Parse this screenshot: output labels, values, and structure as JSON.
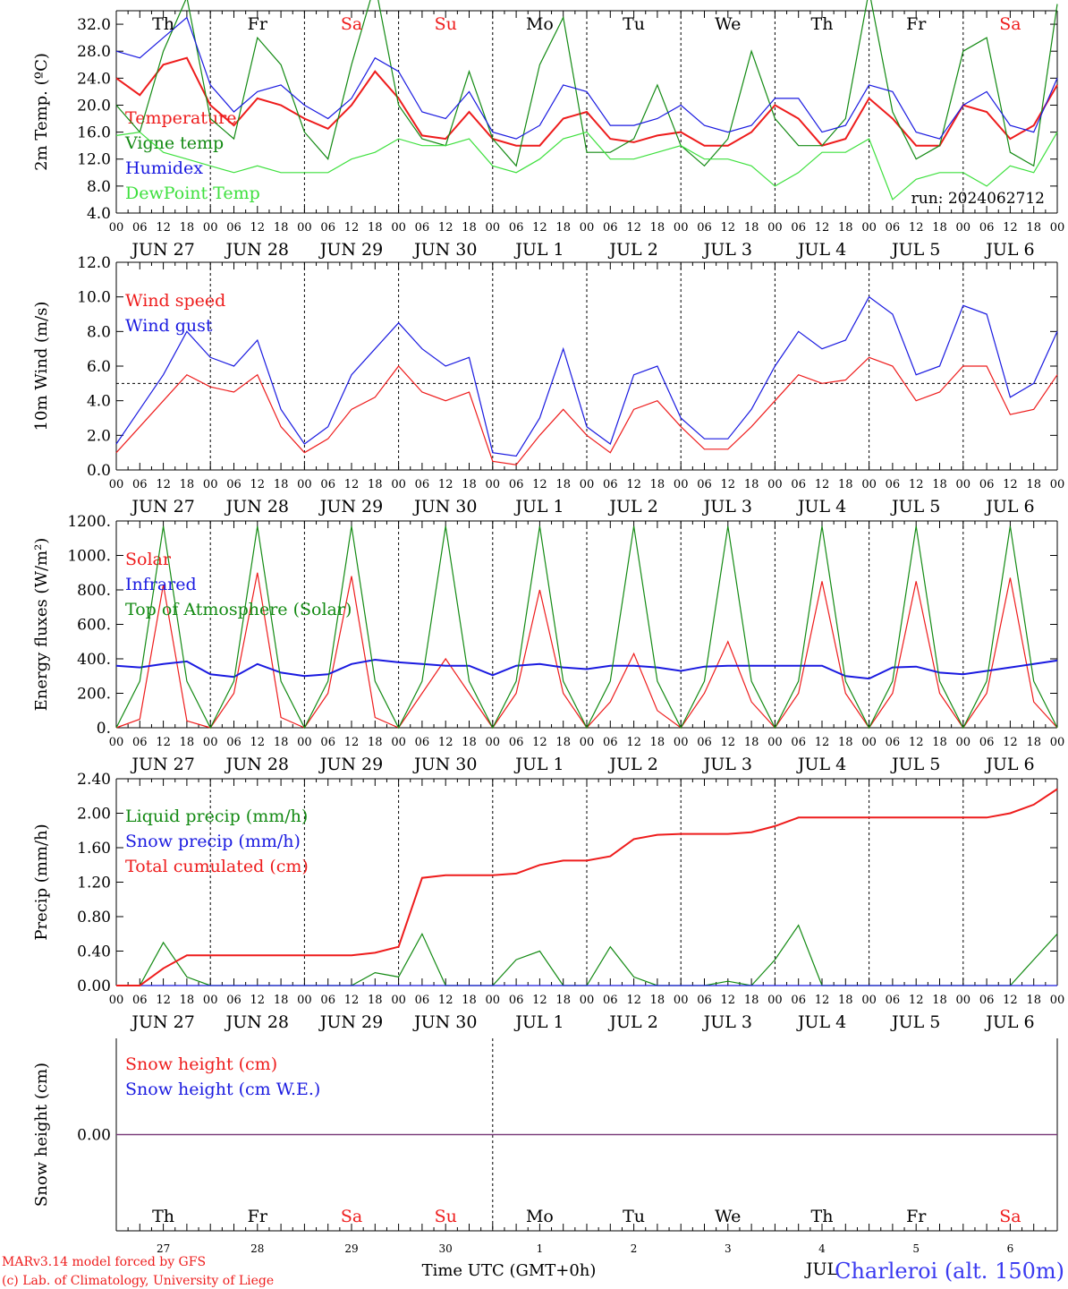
{
  "colors": {
    "red": "#ee1c1c",
    "green": "#138a13",
    "blue": "#1a1ae0",
    "lightgreen": "#3ee03e",
    "purple": "#7a3a7a",
    "black": "#000000",
    "footer_blue": "#3a3af0"
  },
  "days": [
    "Th",
    "Fr",
    "Sa",
    "Su",
    "Mo",
    "Tu",
    "We",
    "Th",
    "Fr",
    "Sa"
  ],
  "weekend_days": [
    2,
    3,
    9
  ],
  "date_labels": [
    "JUN 27",
    "JUN 28",
    "JUN 29",
    "JUN 30",
    "JUL  1",
    "JUL  2",
    "JUL  3",
    "JUL  4",
    "JUL  5",
    "JUL  6"
  ],
  "hour_labels": [
    "00",
    "06",
    "12",
    "18"
  ],
  "final_hour": "00",
  "bottom_day_numbers": [
    "27",
    "28",
    "29",
    "30",
    "1",
    "2",
    "3",
    "4",
    "5",
    "6"
  ],
  "bottom_month": "JUL",
  "xlabel": "Time UTC (GMT+0h)",
  "footer": {
    "model": "MARv3.14 model forced by GFS",
    "credit": "(c) Lab. of Climatology, University of Liege",
    "station": "Charleroi (alt. 150m)"
  },
  "run_label": "run: 2024062712",
  "chart_data": [
    {
      "type": "line",
      "id": "temp",
      "ylabel": "2m Temp. (ºC)",
      "ylim": [
        4,
        34
      ],
      "yticks": [
        "4.0",
        "8.0",
        "12.0",
        "16.0",
        "20.0",
        "24.0",
        "28.0",
        "32.0"
      ],
      "ytick_values": [
        4,
        8,
        12,
        16,
        20,
        24,
        28,
        32
      ],
      "x_unit": "hours since Jun 27 00 UTC",
      "x": [
        0,
        6,
        12,
        18,
        24,
        30,
        36,
        42,
        48,
        54,
        60,
        66,
        72,
        78,
        84,
        90,
        96,
        102,
        108,
        114,
        120,
        126,
        132,
        138,
        144,
        150,
        156,
        162,
        168,
        174,
        180,
        186,
        192,
        198,
        204,
        210,
        216,
        222,
        228,
        234,
        240
      ],
      "series": [
        {
          "name": "Temperature",
          "color": "red",
          "values": [
            24,
            21.5,
            26,
            27,
            20,
            17,
            21,
            20,
            18,
            16.5,
            20,
            25,
            21,
            15.5,
            15,
            19,
            15,
            14,
            14,
            18,
            19,
            15,
            14.5,
            15.5,
            16,
            14,
            14,
            16,
            20,
            18,
            14,
            15,
            21,
            18,
            14,
            14,
            20,
            19,
            15,
            17,
            23
          ]
        },
        {
          "name": "Vigne temp",
          "color": "green",
          "values": [
            20,
            16,
            28,
            36,
            18,
            15,
            30,
            26,
            16,
            12,
            26,
            38,
            20,
            15,
            14,
            25,
            15,
            11,
            26,
            33,
            13,
            13,
            15,
            23,
            14,
            11,
            15,
            28,
            18,
            14,
            14,
            18,
            37,
            19,
            12,
            14,
            28,
            30,
            13,
            11,
            35
          ]
        },
        {
          "name": "Humidex",
          "color": "blue",
          "values": [
            28,
            27,
            30,
            33,
            23,
            19,
            22,
            23,
            20,
            18,
            21,
            27,
            25,
            19,
            18,
            22,
            16,
            15,
            17,
            23,
            22,
            17,
            17,
            18,
            20,
            17,
            16,
            17,
            21,
            21,
            16,
            17,
            23,
            22,
            16,
            15,
            20,
            22,
            17,
            16,
            24
          ]
        },
        {
          "name": "DewPoint Temp",
          "color": "lightgreen",
          "values": [
            15.5,
            16,
            13,
            12,
            11,
            10,
            11,
            10,
            10,
            10,
            12,
            13,
            15,
            14,
            14,
            15,
            11,
            10,
            12,
            15,
            16,
            12,
            12,
            13,
            14,
            12,
            12,
            11,
            8,
            10,
            13,
            13,
            15,
            6,
            9,
            10,
            10,
            8,
            11,
            10,
            16
          ]
        }
      ]
    },
    {
      "type": "line",
      "id": "wind",
      "ylabel": "10m Wind (m/s)",
      "ylim": [
        0,
        12
      ],
      "ref_line": 5,
      "yticks": [
        "0.0",
        "2.0",
        "4.0",
        "6.0",
        "8.0",
        "10.0",
        "12.0"
      ],
      "ytick_values": [
        0,
        2,
        4,
        6,
        8,
        10,
        12
      ],
      "x_unit": "hours since Jun 27 00 UTC",
      "x": [
        0,
        6,
        12,
        18,
        24,
        30,
        36,
        42,
        48,
        54,
        60,
        66,
        72,
        78,
        84,
        90,
        96,
        102,
        108,
        114,
        120,
        126,
        132,
        138,
        144,
        150,
        156,
        162,
        168,
        174,
        180,
        186,
        192,
        198,
        204,
        210,
        216,
        222,
        228,
        234,
        240
      ],
      "series": [
        {
          "name": "Wind speed",
          "color": "red",
          "values": [
            1,
            2.5,
            4,
            5.5,
            4.8,
            4.5,
            5.5,
            2.5,
            1,
            1.8,
            3.5,
            4.2,
            6,
            4.5,
            4,
            4.5,
            0.5,
            0.3,
            2,
            3.5,
            2,
            1,
            3.5,
            4,
            2.5,
            1.2,
            1.2,
            2.5,
            4,
            5.5,
            5,
            5.2,
            6.5,
            6,
            4,
            4.5,
            6,
            6,
            3.2,
            3.5,
            5.5
          ]
        },
        {
          "name": "Wind gust",
          "color": "blue",
          "values": [
            1.5,
            3.5,
            5.5,
            8,
            6.5,
            6,
            7.5,
            3.5,
            1.5,
            2.5,
            5.5,
            7,
            8.5,
            7,
            6,
            6.5,
            1,
            0.8,
            3,
            7,
            2.5,
            1.5,
            5.5,
            6,
            3,
            1.8,
            1.8,
            3.5,
            6,
            8,
            7,
            7.5,
            10,
            9,
            5.5,
            6,
            9.5,
            9,
            4.2,
            5,
            8
          ]
        }
      ]
    },
    {
      "type": "line",
      "id": "energy",
      "ylabel": "Energy fluxes (W/m²)",
      "ylim": [
        0,
        1200
      ],
      "yticks": [
        "0.",
        "200.",
        "400.",
        "600.",
        "800.",
        "1000.",
        "1200."
      ],
      "ytick_values": [
        0,
        200,
        400,
        600,
        800,
        1000,
        1200
      ],
      "x_unit": "hours since Jun 27 00 UTC",
      "x": [
        0,
        6,
        12,
        18,
        24,
        30,
        36,
        42,
        48,
        54,
        60,
        66,
        72,
        78,
        84,
        90,
        96,
        102,
        108,
        114,
        120,
        126,
        132,
        138,
        144,
        150,
        156,
        162,
        168,
        174,
        180,
        186,
        192,
        198,
        204,
        210,
        216,
        222,
        228,
        234,
        240
      ],
      "series": [
        {
          "name": "Solar",
          "color": "red",
          "values": [
            0,
            50,
            830,
            40,
            0,
            200,
            900,
            60,
            0,
            200,
            880,
            60,
            0,
            200,
            400,
            200,
            0,
            200,
            800,
            200,
            0,
            150,
            430,
            100,
            0,
            200,
            500,
            150,
            0,
            200,
            850,
            200,
            0,
            200,
            850,
            200,
            0,
            200,
            870,
            150,
            0
          ]
        },
        {
          "name": "Infrared",
          "color": "blue",
          "values": [
            360,
            350,
            370,
            385,
            310,
            295,
            370,
            320,
            300,
            310,
            370,
            395,
            380,
            370,
            360,
            360,
            305,
            360,
            370,
            350,
            340,
            360,
            360,
            350,
            330,
            355,
            360,
            360,
            360,
            360,
            360,
            300,
            285,
            350,
            355,
            320,
            310,
            330,
            350,
            370,
            390
          ]
        },
        {
          "name": "Top of Atmosphere (Solar)",
          "color": "green",
          "values": [
            0,
            270,
            1170,
            270,
            0,
            270,
            1170,
            270,
            0,
            270,
            1170,
            270,
            0,
            270,
            1170,
            270,
            0,
            270,
            1170,
            270,
            0,
            270,
            1170,
            270,
            0,
            270,
            1170,
            270,
            0,
            270,
            1170,
            270,
            0,
            270,
            1170,
            270,
            0,
            270,
            1170,
            270,
            0
          ]
        }
      ]
    },
    {
      "type": "line",
      "id": "precip",
      "ylabel": "Precip (mm/h)",
      "ylim": [
        0,
        2.4
      ],
      "yticks": [
        "0.00",
        "0.40",
        "0.80",
        "1.20",
        "1.60",
        "2.00",
        "2.40"
      ],
      "ytick_values": [
        0,
        0.4,
        0.8,
        1.2,
        1.6,
        2.0,
        2.4
      ],
      "x_unit": "hours since Jun 27 00 UTC",
      "x": [
        0,
        6,
        12,
        18,
        24,
        30,
        36,
        42,
        48,
        54,
        60,
        66,
        72,
        78,
        84,
        90,
        96,
        102,
        108,
        114,
        120,
        126,
        132,
        138,
        144,
        150,
        156,
        162,
        168,
        174,
        180,
        186,
        192,
        198,
        204,
        210,
        216,
        222,
        228,
        234,
        240
      ],
      "series": [
        {
          "name": "Liquid precip (mm/h)",
          "color": "green",
          "values": [
            0,
            0,
            0.5,
            0.1,
            0,
            0,
            0,
            0,
            0,
            0,
            0,
            0.15,
            0.1,
            0.6,
            0,
            0,
            0,
            0.3,
            0.4,
            0,
            0,
            0.45,
            0.1,
            0,
            0,
            0,
            0.05,
            0,
            0.3,
            0.7,
            0,
            0,
            0,
            0,
            0,
            0,
            0,
            0,
            0,
            0.3,
            0.6
          ]
        },
        {
          "name": "Snow precip (mm/h)",
          "color": "blue",
          "values": [
            0,
            0,
            0,
            0,
            0,
            0,
            0,
            0,
            0,
            0,
            0,
            0,
            0,
            0,
            0,
            0,
            0,
            0,
            0,
            0,
            0,
            0,
            0,
            0,
            0,
            0,
            0,
            0,
            0,
            0,
            0,
            0,
            0,
            0,
            0,
            0,
            0,
            0,
            0,
            0,
            0
          ]
        },
        {
          "name": "Total cumulated (cm)",
          "color": "red",
          "values": [
            0,
            0,
            0.2,
            0.35,
            0.35,
            0.35,
            0.35,
            0.35,
            0.35,
            0.35,
            0.35,
            0.38,
            0.45,
            1.25,
            1.28,
            1.28,
            1.28,
            1.3,
            1.4,
            1.45,
            1.45,
            1.5,
            1.7,
            1.75,
            1.76,
            1.76,
            1.76,
            1.78,
            1.85,
            1.95,
            1.95,
            1.95,
            1.95,
            1.95,
            1.95,
            1.95,
            1.95,
            1.95,
            2.0,
            2.1,
            2.28
          ]
        }
      ]
    },
    {
      "type": "line",
      "id": "snow",
      "ylabel": "Snow height (cm)",
      "ylim": [
        -1,
        1
      ],
      "yticks": [
        "0.00"
      ],
      "ytick_values": [
        0
      ],
      "x_unit": "hours since Jun 27 00 UTC",
      "x": [
        0,
        240
      ],
      "series": [
        {
          "name": "Snow height (cm)",
          "color": "red",
          "values": [
            0,
            0
          ]
        },
        {
          "name": "Snow height (cm W.E.)",
          "color": "blue",
          "values": [
            0,
            0
          ]
        }
      ]
    }
  ]
}
